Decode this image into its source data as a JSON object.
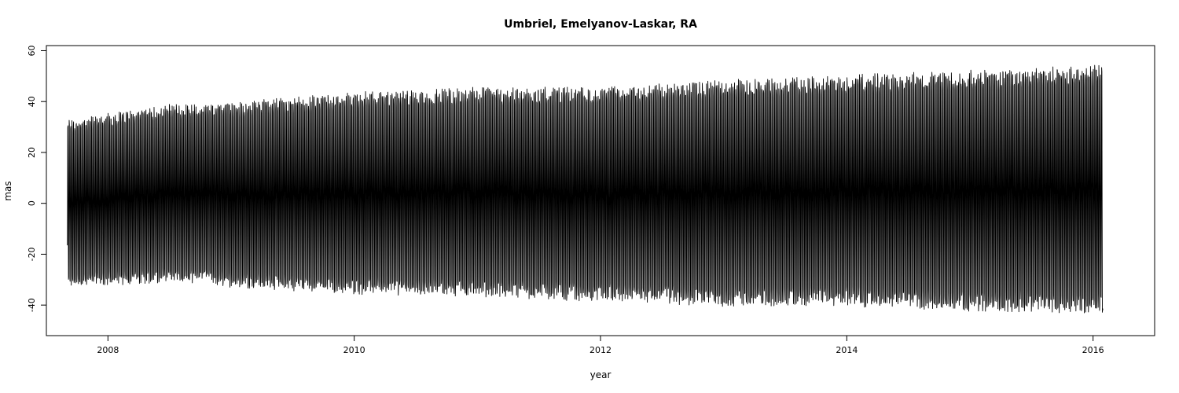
{
  "chart_data": {
    "type": "line",
    "title": "Umbriel, Emelyanov-Laskar, RA",
    "xlabel": "year",
    "ylabel": "mas",
    "xlim": [
      2007.5,
      2016.5
    ],
    "ylim": [
      -52,
      62
    ],
    "x_ticks": [
      2008,
      2010,
      2012,
      2014,
      2016
    ],
    "x_tick_labels": [
      "2008",
      "2010",
      "2012",
      "2014",
      "2016"
    ],
    "y_ticks": [
      -40,
      -20,
      0,
      20,
      40,
      60
    ],
    "y_tick_labels": [
      "-40",
      "-20",
      "0",
      "20",
      "40",
      "60"
    ],
    "grid": false,
    "legend": "none",
    "line_color": "#000000",
    "series": [
      {
        "x_start": 2007.67,
        "x_end": 2016.08,
        "period_years": 0.0113,
        "y_start": -16.5,
        "y_end": -42,
        "envelope": [
          {
            "x": 2007.7,
            "max": 35,
            "min": -35
          },
          {
            "x": 2008.5,
            "max": 41,
            "min": -33
          },
          {
            "x": 2009.0,
            "max": 42,
            "min": -35
          },
          {
            "x": 2010.0,
            "max": 46,
            "min": -38
          },
          {
            "x": 2011.0,
            "max": 48,
            "min": -39
          },
          {
            "x": 2012.0,
            "max": 48,
            "min": -41
          },
          {
            "x": 2013.0,
            "max": 51,
            "min": -43
          },
          {
            "x": 2014.0,
            "max": 53,
            "min": -43
          },
          {
            "x": 2015.0,
            "max": 55,
            "min": -45
          },
          {
            "x": 2016.0,
            "max": 57,
            "min": -46
          }
        ]
      }
    ]
  }
}
